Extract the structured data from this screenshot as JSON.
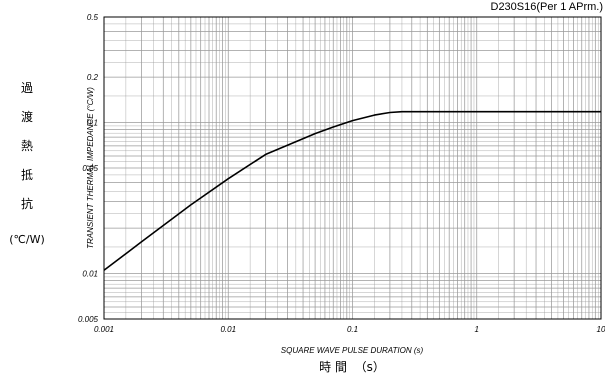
{
  "chart_data": {
    "type": "line",
    "part_label": "D230S16(Per 1 APrm.)",
    "xlabel": "SQUARE WAVE PULSE DURATION (s)",
    "xlabel_jp": "時 間  （s）",
    "ylabel": "TRANSIENT THERMAL IMPEDANCE (°C/W)",
    "ylabel_jp": [
      "過",
      "渡",
      "熱",
      "抵",
      "抗"
    ],
    "ylabel_unit_jp": "(℃/W)",
    "xscale": "log",
    "yscale": "log",
    "xlim": [
      0.001,
      10
    ],
    "ylim": [
      0.005,
      0.5
    ],
    "grid": true,
    "x_ticks": [
      {
        "value": 0.001,
        "label": "0.001"
      },
      {
        "value": 0.01,
        "label": "0.01"
      },
      {
        "value": 0.1,
        "label": "0.1"
      },
      {
        "value": 1,
        "label": "1"
      },
      {
        "value": 10,
        "label": "10"
      }
    ],
    "y_ticks": [
      {
        "value": 0.5,
        "label": "0.5"
      },
      {
        "value": 0.2,
        "label": "0.2"
      },
      {
        "value": 0.1,
        "label": "0.1"
      },
      {
        "value": 0.05,
        "label": "0.05"
      },
      {
        "value": 0.01,
        "label": "0.01"
      },
      {
        "value": 0.005,
        "label": "0.005"
      }
    ],
    "series": [
      {
        "x": [
          0.001,
          0.002,
          0.005,
          0.01,
          0.02,
          0.05,
          0.07,
          0.1,
          0.15,
          0.2,
          0.25,
          0.3,
          0.5,
          1,
          2,
          5,
          10
        ],
        "y": [
          0.0105,
          0.0162,
          0.0285,
          0.0425,
          0.0615,
          0.0845,
          0.0935,
          0.103,
          0.112,
          0.1165,
          0.118,
          0.118,
          0.118,
          0.118,
          0.118,
          0.118,
          0.118
        ]
      }
    ],
    "colors": {
      "line": "#000000",
      "grid": "#9a9a9a",
      "frame": "#000000"
    }
  }
}
